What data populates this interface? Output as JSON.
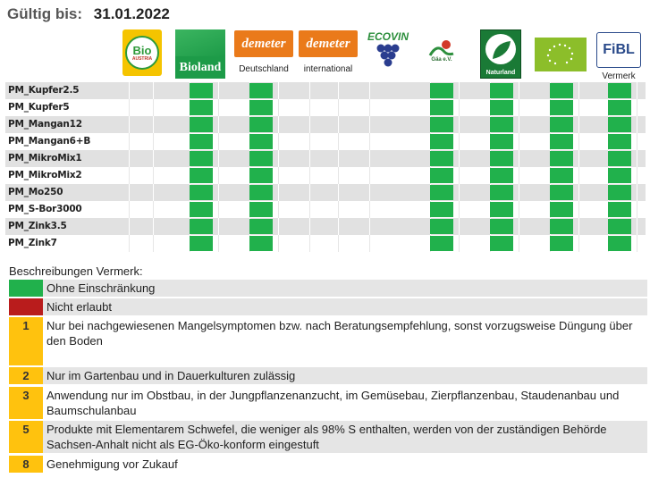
{
  "header": {
    "valid_label": "Gültig bis:",
    "valid_date": "31.01.2022"
  },
  "logos": [
    {
      "id": "bio-austria",
      "text": "Bio",
      "subtext": "AUSTRIA",
      "caption": ""
    },
    {
      "id": "bioland",
      "text": "Bioland",
      "caption": ""
    },
    {
      "id": "demeter-de",
      "text": "demeter",
      "caption": "Deutschland"
    },
    {
      "id": "demeter-int",
      "text": "demeter",
      "caption": "international"
    },
    {
      "id": "ecovin",
      "text": "ECOVIN",
      "caption": ""
    },
    {
      "id": "gaea",
      "text": "Gäa e.V.",
      "caption": ""
    },
    {
      "id": "naturland",
      "text": "Naturland",
      "caption": ""
    },
    {
      "id": "eu-bio",
      "text": "",
      "caption": ""
    },
    {
      "id": "fibl",
      "text": "FiBL",
      "caption": "Vermerk"
    }
  ],
  "colors": {
    "green": "#21b14c",
    "red": "#b91c1c",
    "yellow": "#ffc20e",
    "shade": "#e1e1e1"
  },
  "products": [
    {
      "name": "PM_Kupfer2.5",
      "approvals": [
        "",
        "",
        "green",
        "green",
        "",
        "green",
        "green",
        "green",
        "green"
      ]
    },
    {
      "name": "PM_Kupfer5",
      "approvals": [
        "",
        "",
        "green",
        "green",
        "",
        "green",
        "green",
        "green",
        "green"
      ]
    },
    {
      "name": "PM_Mangan12",
      "approvals": [
        "",
        "",
        "green",
        "green",
        "",
        "green",
        "green",
        "green",
        "green"
      ]
    },
    {
      "name": "PM_Mangan6+B",
      "approvals": [
        "",
        "",
        "green",
        "green",
        "",
        "green",
        "green",
        "green",
        "green"
      ]
    },
    {
      "name": "PM_MikroMix1",
      "approvals": [
        "",
        "",
        "green",
        "green",
        "",
        "green",
        "green",
        "green",
        "green"
      ]
    },
    {
      "name": "PM_MikroMix2",
      "approvals": [
        "",
        "",
        "green",
        "green",
        "",
        "green",
        "green",
        "green",
        "green"
      ]
    },
    {
      "name": "PM_Mo250",
      "approvals": [
        "",
        "",
        "green",
        "green",
        "",
        "green",
        "green",
        "green",
        "green"
      ]
    },
    {
      "name": "PM_S-Bor3000",
      "approvals": [
        "",
        "",
        "green",
        "green",
        "",
        "green",
        "green",
        "green",
        "green"
      ]
    },
    {
      "name": "PM_Zink3.5",
      "approvals": [
        "",
        "",
        "green",
        "green",
        "",
        "green",
        "green",
        "green",
        "green"
      ]
    },
    {
      "name": "PM_Zink7",
      "approvals": [
        "",
        "",
        "green",
        "green",
        "",
        "green",
        "green",
        "green",
        "green"
      ]
    }
  ],
  "legend": {
    "title": "Beschreibungen Vermerk:",
    "items": [
      {
        "swatch": "green",
        "code": "",
        "text": "Ohne Einschränkung"
      },
      {
        "swatch": "red",
        "code": "",
        "text": "Nicht erlaubt"
      },
      {
        "swatch": "yellow",
        "code": "1",
        "text": "Nur bei nachgewiesenen Mangelsymptomen bzw. nach Beratungsempfehlung, sonst vorzugsweise Düngung über",
        "text2": "den Boden"
      },
      {
        "swatch": "yellow",
        "code": "2",
        "text": "Nur im Gartenbau und in Dauerkulturen zulässig"
      },
      {
        "swatch": "yellow",
        "code": "3",
        "text": "Anwendung nur im Obstbau, in der Jungpflanzenanzucht, im Gemüsebau, Zierpflanzenbau, Staudenanbau und Baumschulanbau"
      },
      {
        "swatch": "yellow",
        "code": "5",
        "text": "Produkte mit Elementarem Schwefel, die weniger als 98% S enthalten, werden von der zuständigen Behörde Sachsen-Anhalt nicht als EG-Öko-konform eingestuft"
      },
      {
        "swatch": "yellow",
        "code": "8",
        "text": "Genehmigung vor Zukauf"
      }
    ]
  }
}
